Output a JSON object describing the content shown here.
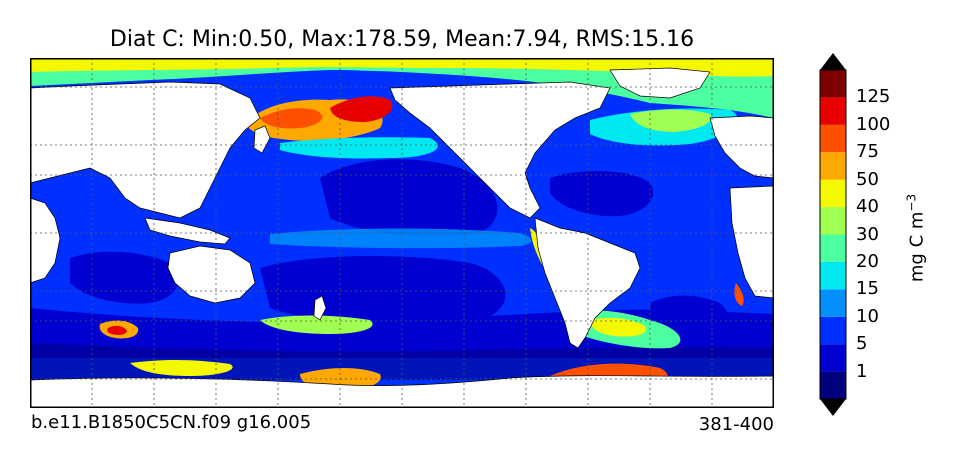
{
  "title": "Diat C: Min:0.50, Max:178.59, Mean:7.94, RMS:15.16",
  "footer": {
    "case": "b.e11.B1850C5CN.f09 g16.005",
    "years": "381-400"
  },
  "colorbar": {
    "unit_base": "mg C m",
    "unit_exp": "−3",
    "levels": [
      "1",
      "5",
      "10",
      "15",
      "20",
      "30",
      "40",
      "50",
      "75",
      "100",
      "125"
    ],
    "colors": [
      "#00007f",
      "#0000d0",
      "#0030ff",
      "#0090ff",
      "#00e8f0",
      "#4cff9f",
      "#a0ff50",
      "#f4f800",
      "#ffa800",
      "#ff5000",
      "#e80000",
      "#7f0000"
    ],
    "extend": "both"
  },
  "map": {
    "projection": "plate-carree",
    "gridlines": "dotted",
    "land_color": "#ffffff",
    "ocean_base_color": "#0030ff"
  }
}
